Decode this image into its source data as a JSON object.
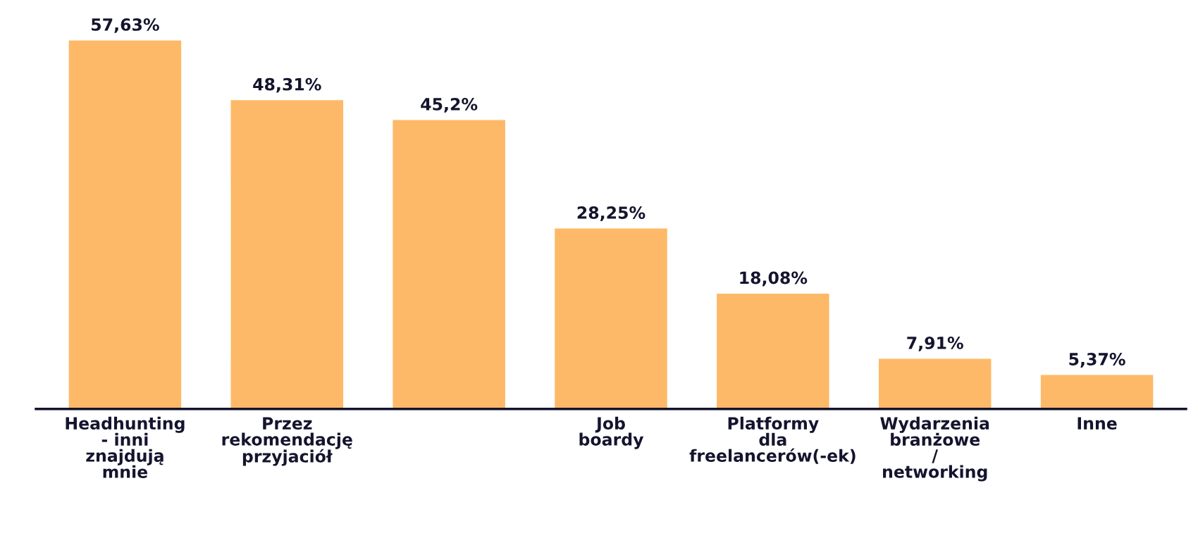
{
  "chart_data": {
    "type": "bar",
    "categories": [
      "Headhunting\n- inni\nznajdują\nmnie",
      "Przez\nrekomendację\nprzyjaciół",
      null,
      "Job\nboardy",
      "Platformy\ndla\nfreelancerów(-ek)",
      "Wydarzenia\nbranżowe\n/\nnetworking",
      "Inne"
    ],
    "values": [
      57.63,
      48.31,
      45.2,
      28.25,
      18.08,
      7.91,
      5.37
    ],
    "value_labels": [
      "57,63%",
      "48,31%",
      "45,2%",
      "28,25%",
      "18,08%",
      "7,91%",
      "5,37%"
    ],
    "color": "#fdb967",
    "tick_labels": "x",
    "grid": false,
    "legend": false
  }
}
